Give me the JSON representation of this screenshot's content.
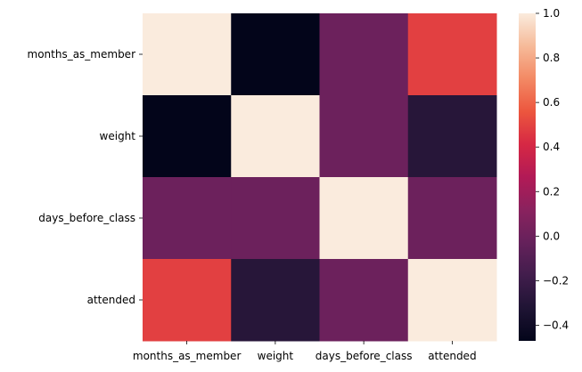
{
  "chart_data": {
    "type": "heatmap",
    "title": "",
    "xlabel": "",
    "ylabel": "",
    "x_categories": [
      "months_as_member",
      "weight",
      "days_before_class",
      "attended"
    ],
    "y_categories": [
      "months_as_member",
      "weight",
      "days_before_class",
      "attended"
    ],
    "values": [
      [
        1.0,
        -0.47,
        0.0,
        0.49
      ],
      [
        -0.47,
        1.0,
        0.0,
        -0.29
      ],
      [
        0.0,
        0.0,
        1.0,
        0.0
      ],
      [
        0.49,
        -0.29,
        0.0,
        1.0
      ]
    ],
    "value_range": [
      -0.47,
      1.0
    ],
    "colorbar": {
      "ticks": [
        1.0,
        0.8,
        0.6,
        0.4,
        0.2,
        0.0,
        -0.2,
        -0.4
      ],
      "tick_labels": [
        "1.0",
        "0.8",
        "0.6",
        "0.4",
        "0.2",
        "0.0",
        "−0.2",
        "−0.4"
      ],
      "colormap": "rocket",
      "position": "right"
    },
    "grid": false
  }
}
